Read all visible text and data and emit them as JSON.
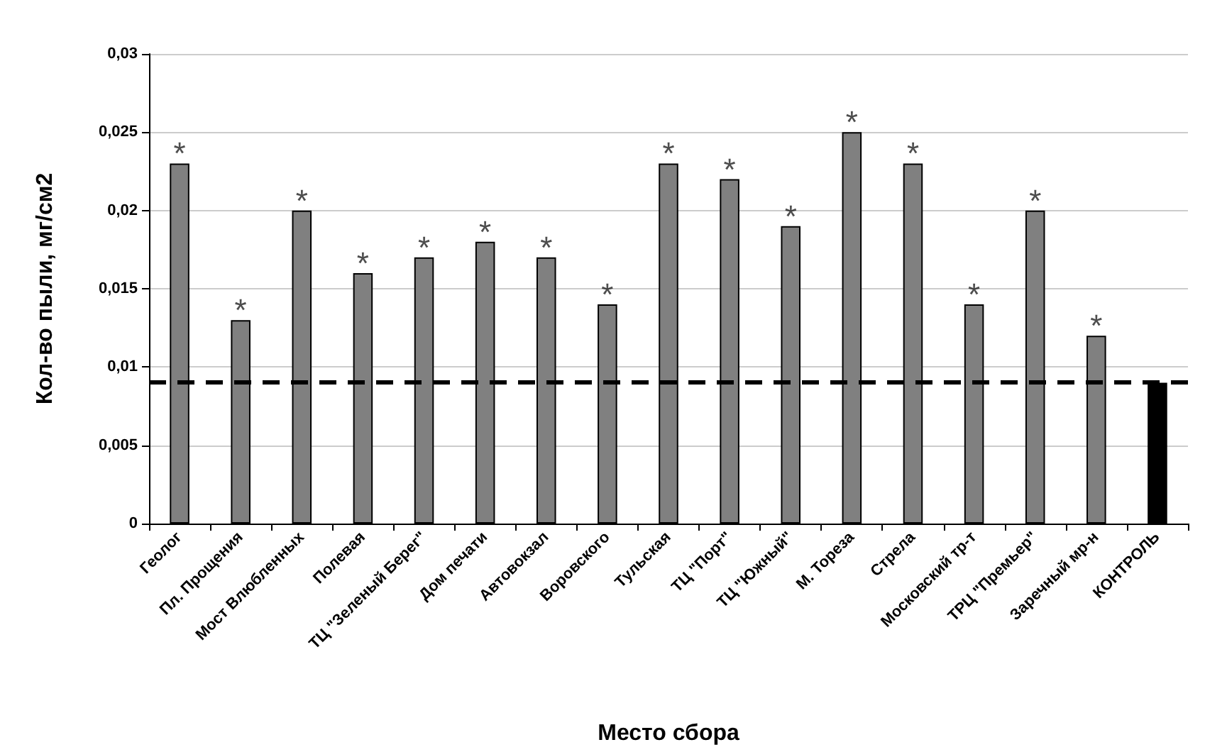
{
  "chart_data": {
    "type": "bar",
    "xlabel": "Место сбора",
    "ylabel": "Кол-во пыли, мг/см2",
    "categories": [
      "Геолог",
      "Пл. Прощения",
      "Мост Влюбленных",
      "Полевая",
      "ТЦ \"Зеленый Берег\"",
      "Дом печати",
      "Автовокзал",
      "Воровского",
      "Тульская",
      "ТЦ \"Порт\"",
      "ТЦ \"Южный\"",
      "М. Тореза",
      "Стрела",
      "Московский тр-т",
      "ТРЦ \"Премьер\"",
      "Заречный мр-н",
      "КОНТРОЛЬ"
    ],
    "values": [
      0.023,
      0.013,
      0.02,
      0.016,
      0.017,
      0.018,
      0.017,
      0.014,
      0.023,
      0.022,
      0.019,
      0.025,
      0.023,
      0.014,
      0.02,
      0.012,
      0.009
    ],
    "colors": [
      "#808080",
      "#808080",
      "#808080",
      "#808080",
      "#808080",
      "#808080",
      "#808080",
      "#808080",
      "#808080",
      "#808080",
      "#808080",
      "#808080",
      "#808080",
      "#808080",
      "#808080",
      "#808080",
      "#000000"
    ],
    "ylim": [
      0,
      0.03
    ],
    "yticks": [
      {
        "value": 0,
        "label": "0"
      },
      {
        "value": 0.005,
        "label": "0,005"
      },
      {
        "value": 0.01,
        "label": "0,01"
      },
      {
        "value": 0.015,
        "label": "0,015"
      },
      {
        "value": 0.02,
        "label": "0,02"
      },
      {
        "value": 0.025,
        "label": "0,025"
      },
      {
        "value": 0.03,
        "label": "0,03"
      }
    ],
    "ref_lines": [
      {
        "axis": "y",
        "value": 0.009,
        "color": "#000000",
        "line_style": "dashed"
      }
    ],
    "annotations": [
      {
        "text": "*",
        "x": "Геолог",
        "y": 0.023
      },
      {
        "text": "*",
        "x": "Пл. Прощения",
        "y": 0.013
      },
      {
        "text": "*",
        "x": "Мост Влюбленных",
        "y": 0.02
      },
      {
        "text": "*",
        "x": "Полевая",
        "y": 0.016
      },
      {
        "text": "*",
        "x": "ТЦ \"Зеленый Берег\"",
        "y": 0.017
      },
      {
        "text": "*",
        "x": "Дом печати",
        "y": 0.018
      },
      {
        "text": "*",
        "x": "Автовокзал",
        "y": 0.017
      },
      {
        "text": "*",
        "x": "Воровского",
        "y": 0.014
      },
      {
        "text": "*",
        "x": "Тульская",
        "y": 0.023
      },
      {
        "text": "*",
        "x": "ТЦ \"Порт\"",
        "y": 0.022
      },
      {
        "text": "*",
        "x": "ТЦ \"Южный\"",
        "y": 0.019
      },
      {
        "text": "*",
        "x": "М. Тореза",
        "y": 0.025
      },
      {
        "text": "*",
        "x": "Стрела",
        "y": 0.023
      },
      {
        "text": "*",
        "x": "Московский тр-т",
        "y": 0.014
      },
      {
        "text": "*",
        "x": "ТРЦ \"Премьер\"",
        "y": 0.02
      },
      {
        "text": "*",
        "x": "Заречный мр-н",
        "y": 0.012
      }
    ],
    "grid": "y"
  }
}
